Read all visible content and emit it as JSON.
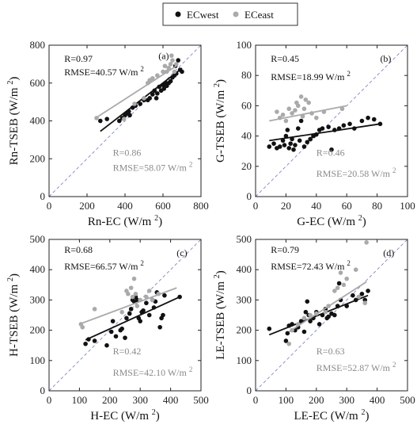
{
  "legend": {
    "west_label": "ECwest",
    "east_label": "ECeast"
  },
  "colors": {
    "west": "#111111",
    "east": "#aaaaaa",
    "one_to_one": "#6a7fb0"
  },
  "chart_data": [
    {
      "type": "scatter",
      "panel_label": "(a)",
      "xlabel": "Rn-EC (W/m 2)",
      "ylabel": "Rn-TSEB (W/m 2)",
      "xlim": [
        0,
        800
      ],
      "ylim": [
        0,
        800
      ],
      "xticks": [
        0,
        200,
        400,
        600,
        800
      ],
      "yticks": [
        0,
        200,
        400,
        600,
        800
      ],
      "stats_west": {
        "r": "R=0.97",
        "rmse": "RMSE=40.57 W/m",
        "sup": "2"
      },
      "stats_east": {
        "r": "R=0.86",
        "rmse": "RMSE=58.07 W/m",
        "sup": "2"
      },
      "series": [
        {
          "name": "ECwest",
          "points": [
            [
              270,
              400
            ],
            [
              305,
              410
            ],
            [
              370,
              400
            ],
            [
              385,
              415
            ],
            [
              400,
              430
            ],
            [
              410,
              440
            ],
            [
              420,
              450
            ],
            [
              425,
              430
            ],
            [
              440,
              470
            ],
            [
              455,
              480
            ],
            [
              480,
              490
            ],
            [
              500,
              510
            ],
            [
              520,
              510
            ],
            [
              530,
              520
            ],
            [
              545,
              540
            ],
            [
              555,
              560
            ],
            [
              565,
              520
            ],
            [
              570,
              545
            ],
            [
              580,
              580
            ],
            [
              590,
              560
            ],
            [
              600,
              590
            ],
            [
              605,
              570
            ],
            [
              615,
              600
            ],
            [
              620,
              585
            ],
            [
              630,
              600
            ],
            [
              640,
              610
            ],
            [
              650,
              630
            ],
            [
              660,
              640
            ],
            [
              665,
              690
            ],
            [
              670,
              650
            ],
            [
              680,
              720
            ],
            [
              690,
              670
            ],
            [
              700,
              660
            ]
          ],
          "fit": [
            [
              270,
              345
            ],
            [
              700,
              678
            ]
          ]
        },
        {
          "name": "ECeast",
          "points": [
            [
              250,
              415
            ],
            [
              395,
              410
            ],
            [
              450,
              490
            ],
            [
              500,
              520
            ],
            [
              520,
              600
            ],
            [
              530,
              615
            ],
            [
              545,
              625
            ],
            [
              570,
              640
            ],
            [
              600,
              660
            ],
            [
              610,
              690
            ],
            [
              620,
              660
            ],
            [
              630,
              680
            ],
            [
              640,
              700
            ],
            [
              645,
              745
            ],
            [
              650,
              720
            ],
            [
              660,
              660
            ],
            [
              670,
              700
            ]
          ],
          "fit": [
            [
              250,
              418
            ],
            [
              670,
              690
            ]
          ]
        }
      ]
    },
    {
      "type": "scatter",
      "panel_label": "(b)",
      "xlabel": "G-EC (W/m 2)",
      "ylabel": "G-TSEB (W/m 2)",
      "xlim": [
        0,
        100
      ],
      "ylim": [
        0,
        100
      ],
      "xticks": [
        0,
        20,
        40,
        60,
        80,
        100
      ],
      "yticks": [
        0,
        20,
        40,
        60,
        80,
        100
      ],
      "stats_west": {
        "r": "R=0.45",
        "rmse": "RMSE=18.99 W/m",
        "sup": "2"
      },
      "stats_east": {
        "r": "R=0.46",
        "rmse": "RMSE=20.58 W/m",
        "sup": "2"
      },
      "series": [
        {
          "name": "ECwest",
          "points": [
            [
              9,
              33
            ],
            [
              12,
              35
            ],
            [
              14,
              32
            ],
            [
              16,
              33
            ],
            [
              18,
              37
            ],
            [
              19,
              34
            ],
            [
              20,
              40
            ],
            [
              21,
              44
            ],
            [
              22,
              32
            ],
            [
              23,
              35
            ],
            [
              24,
              38
            ],
            [
              25,
              31
            ],
            [
              26,
              34
            ],
            [
              28,
              45
            ],
            [
              29,
              37
            ],
            [
              30,
              50
            ],
            [
              32,
              33
            ],
            [
              34,
              36
            ],
            [
              36,
              38
            ],
            [
              38,
              40
            ],
            [
              40,
              41
            ],
            [
              42,
              44
            ],
            [
              44,
              45
            ],
            [
              48,
              46
            ],
            [
              50,
              31
            ],
            [
              52,
              44
            ],
            [
              55,
              45
            ],
            [
              58,
              47
            ],
            [
              62,
              48
            ],
            [
              65,
              45
            ],
            [
              70,
              50
            ],
            [
              74,
              52
            ],
            [
              78,
              51
            ],
            [
              82,
              48
            ]
          ],
          "fit": [
            [
              9,
              37
            ],
            [
              82,
              48
            ]
          ]
        },
        {
          "name": "ECeast",
          "points": [
            [
              14,
              56
            ],
            [
              16,
              52
            ],
            [
              18,
              54
            ],
            [
              20,
              50
            ],
            [
              22,
              58
            ],
            [
              24,
              55
            ],
            [
              26,
              57
            ],
            [
              27,
              62
            ],
            [
              28,
              60
            ],
            [
              30,
              66
            ],
            [
              31,
              53
            ],
            [
              32,
              58
            ],
            [
              33,
              64
            ],
            [
              35,
              62
            ],
            [
              37,
              55
            ],
            [
              40,
              52
            ],
            [
              45,
              56
            ],
            [
              57,
              58
            ]
          ],
          "fit": [
            [
              9,
              50
            ],
            [
              60,
              60
            ]
          ]
        }
      ]
    },
    {
      "type": "scatter",
      "panel_label": "(c)",
      "xlabel": "H-EC (W/m 2)",
      "ylabel": "H-TSEB (W/m 2)",
      "xlim": [
        0,
        500
      ],
      "ylim": [
        0,
        500
      ],
      "xticks": [
        0,
        100,
        200,
        300,
        400,
        500
      ],
      "yticks": [
        0,
        100,
        200,
        300,
        400,
        500
      ],
      "stats_west": {
        "r": "R=0.68",
        "rmse": "RMSE=66.57 W/m",
        "sup": "2"
      },
      "stats_east": {
        "r": "R=0.42",
        "rmse": "RMSE=42.10 W/m",
        "sup": "2"
      },
      "series": [
        {
          "name": "ECwest",
          "points": [
            [
              120,
              155
            ],
            [
              130,
              170
            ],
            [
              150,
              165
            ],
            [
              190,
              150
            ],
            [
              205,
              195
            ],
            [
              210,
              230
            ],
            [
              220,
              180
            ],
            [
              235,
              200
            ],
            [
              240,
              205
            ],
            [
              250,
              175
            ],
            [
              255,
              240
            ],
            [
              265,
              255
            ],
            [
              270,
              270
            ],
            [
              275,
              300
            ],
            [
              280,
              295
            ],
            [
              285,
              310
            ],
            [
              290,
              300
            ],
            [
              295,
              240
            ],
            [
              300,
              230
            ],
            [
              305,
              260
            ],
            [
              310,
              265
            ],
            [
              320,
              290
            ],
            [
              330,
              250
            ],
            [
              340,
              300
            ],
            [
              345,
              275
            ],
            [
              350,
              295
            ],
            [
              355,
              325
            ],
            [
              365,
              210
            ],
            [
              370,
              240
            ],
            [
              375,
              250
            ],
            [
              380,
              315
            ],
            [
              430,
              310
            ]
          ],
          "fit": [
            [
              120,
              168
            ],
            [
              430,
              310
            ]
          ]
        },
        {
          "name": "ECeast",
          "points": [
            [
              105,
              220
            ],
            [
              110,
              210
            ],
            [
              150,
              270
            ],
            [
              240,
              260
            ],
            [
              255,
              330
            ],
            [
              260,
              320
            ],
            [
              270,
              340
            ],
            [
              275,
              310
            ],
            [
              280,
              370
            ],
            [
              285,
              320
            ],
            [
              290,
              280
            ],
            [
              300,
              300
            ],
            [
              320,
              310
            ],
            [
              330,
              330
            ],
            [
              340,
              300
            ],
            [
              360,
              320
            ]
          ],
          "fit": [
            [
              105,
              222
            ],
            [
              420,
              340
            ]
          ]
        }
      ]
    },
    {
      "type": "scatter",
      "panel_label": "(d)",
      "xlabel": "LE-EC (W/m 2)",
      "ylabel": "LE-TSEB (W/m 2)",
      "xlim": [
        0,
        500
      ],
      "ylim": [
        0,
        500
      ],
      "xticks": [
        0,
        100,
        200,
        300,
        400,
        500
      ],
      "yticks": [
        0,
        100,
        200,
        300,
        400,
        500
      ],
      "stats_west": {
        "r": "R=0.79",
        "rmse": "RMSE=72.43 W/m",
        "sup": "2"
      },
      "stats_east": {
        "r": "R=0.63",
        "rmse": "RMSE=52.87 W/m",
        "sup": "2"
      },
      "series": [
        {
          "name": "ECwest",
          "points": [
            [
              45,
              205
            ],
            [
              100,
              165
            ],
            [
              105,
              190
            ],
            [
              110,
              215
            ],
            [
              120,
              220
            ],
            [
              130,
              200
            ],
            [
              140,
              210
            ],
            [
              150,
              230
            ],
            [
              160,
              195
            ],
            [
              165,
              260
            ],
            [
              170,
              295
            ],
            [
              175,
              250
            ],
            [
              180,
              230
            ],
            [
              190,
              240
            ],
            [
              200,
              260
            ],
            [
              210,
              220
            ],
            [
              220,
              250
            ],
            [
              230,
              270
            ],
            [
              235,
              240
            ],
            [
              240,
              245
            ],
            [
              250,
              255
            ],
            [
              260,
              250
            ],
            [
              270,
              280
            ],
            [
              275,
              355
            ],
            [
              280,
              300
            ],
            [
              300,
              280
            ],
            [
              320,
              315
            ],
            [
              330,
              300
            ],
            [
              340,
              310
            ],
            [
              350,
              320
            ],
            [
              360,
              300
            ],
            [
              370,
              330
            ]
          ],
          "fit": [
            [
              45,
              185
            ],
            [
              370,
              315
            ]
          ]
        },
        {
          "name": "ECeast",
          "points": [
            [
              110,
              155
            ],
            [
              120,
              200
            ],
            [
              140,
              220
            ],
            [
              160,
              240
            ],
            [
              180,
              250
            ],
            [
              200,
              255
            ],
            [
              230,
              260
            ],
            [
              240,
              280
            ],
            [
              260,
              330
            ],
            [
              270,
              340
            ],
            [
              280,
              390
            ],
            [
              290,
              350
            ],
            [
              300,
              370
            ],
            [
              330,
              400
            ],
            [
              340,
              310
            ],
            [
              360,
              290
            ],
            [
              365,
              490
            ]
          ],
          "fit": [
            [
              110,
              195
            ],
            [
              365,
              360
            ]
          ]
        }
      ]
    }
  ]
}
